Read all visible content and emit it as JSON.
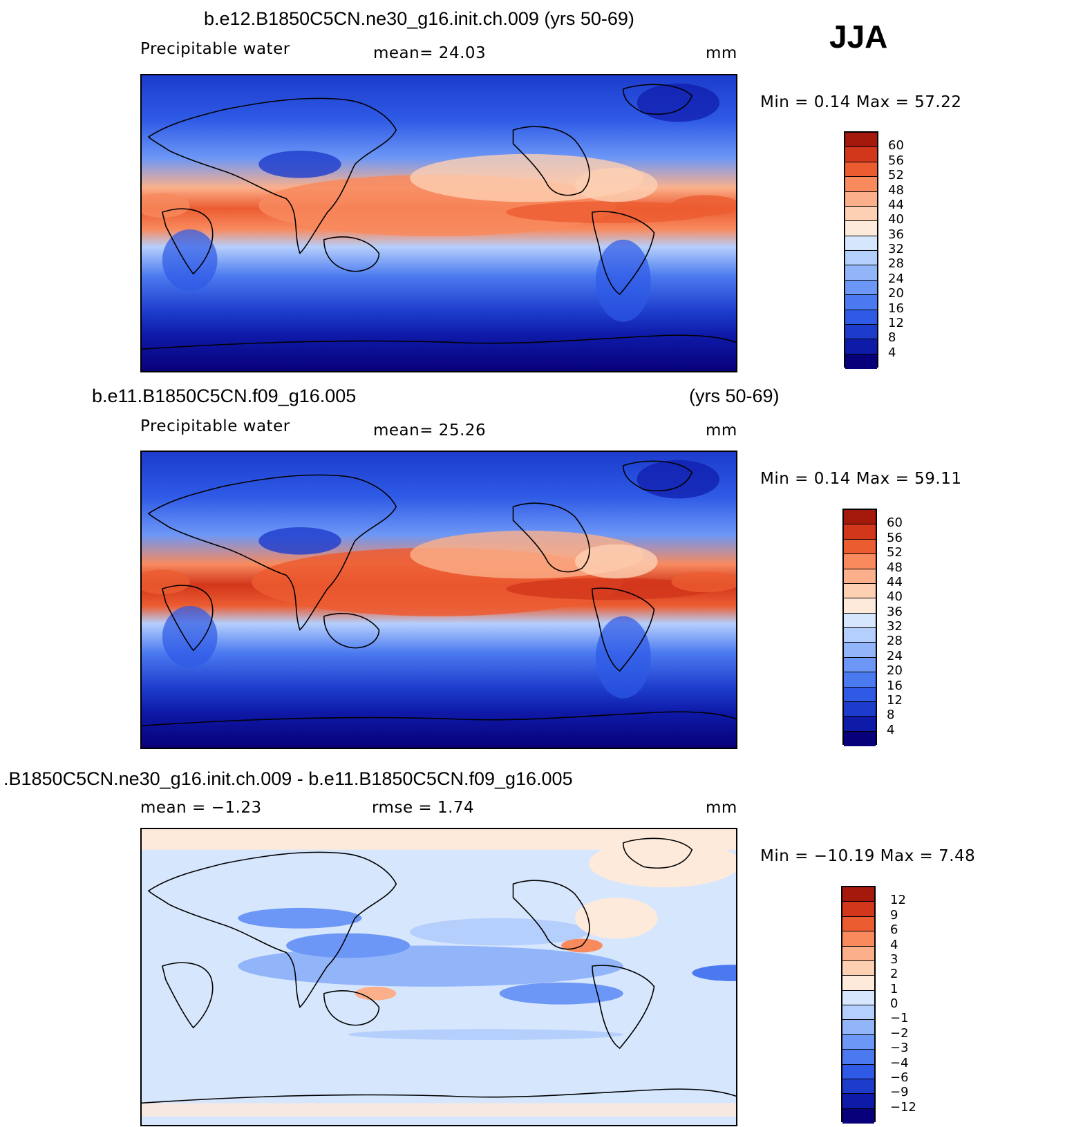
{
  "season": "JJA",
  "colors": {
    "main_scale": [
      "#08007a",
      "#0e1aa8",
      "#1d3ccc",
      "#2e5ae6",
      "#4b7af0",
      "#6d97f6",
      "#92b5fa",
      "#b5cffc",
      "#d6e6fd",
      "#fdeadb",
      "#fdd0b3",
      "#fbb08b",
      "#f88a5e",
      "#ec5c31",
      "#d2361b",
      "#a5190c"
    ],
    "diff_scale": [
      "#08007a",
      "#0e1aa8",
      "#1d3ccc",
      "#2e5ae6",
      "#4b7af0",
      "#6d97f6",
      "#92b5fa",
      "#b5cffc",
      "#d6e6fd",
      "#fdeadb",
      "#fdd0b3",
      "#fbb08b",
      "#f88a5e",
      "#ec5c31",
      "#d2361b",
      "#a5190c"
    ]
  },
  "panels": [
    {
      "title": "b.e12.B1850C5CN.ne30_g16.init.ch.009 (yrs 50-69)",
      "title_right": "",
      "subtitle_left": "Precipitable  water",
      "stat1": "mean=   24.03",
      "stat2": "",
      "units": "mm",
      "minmax": "Min  =     0.14  Max  =    57.22",
      "ticks": [
        "60",
        "56",
        "52",
        "48",
        "44",
        "40",
        "36",
        "32",
        "28",
        "24",
        "20",
        "16",
        "12",
        "8",
        "4"
      ]
    },
    {
      "title": "b.e11.B1850C5CN.f09_g16.005",
      "title_right": "(yrs 50-69)",
      "subtitle_left": "Precipitable  water",
      "stat1": "mean=   25.26",
      "stat2": "",
      "units": "mm",
      "minmax": "Min  =     0.14  Max  =    59.11",
      "ticks": [
        "60",
        "56",
        "52",
        "48",
        "44",
        "40",
        "36",
        "32",
        "28",
        "24",
        "20",
        "16",
        "12",
        "8",
        "4"
      ]
    },
    {
      "title": ".B1850C5CN.ne30_g16.init.ch.009 - b.e11.B1850C5CN.f09_g16.005",
      "title_right": "",
      "subtitle_left": "mean  =    −1.23",
      "stat1": "rmse  =     1.74",
      "stat2": "",
      "units": "mm",
      "minmax": "Min  =  −10.19  Max  =     7.48",
      "ticks": [
        "12",
        "9",
        "6",
        "4",
        "3",
        "2",
        "1",
        "0",
        "−1",
        "−2",
        "−3",
        "−4",
        "−6",
        "−9",
        "−12"
      ]
    }
  ]
}
